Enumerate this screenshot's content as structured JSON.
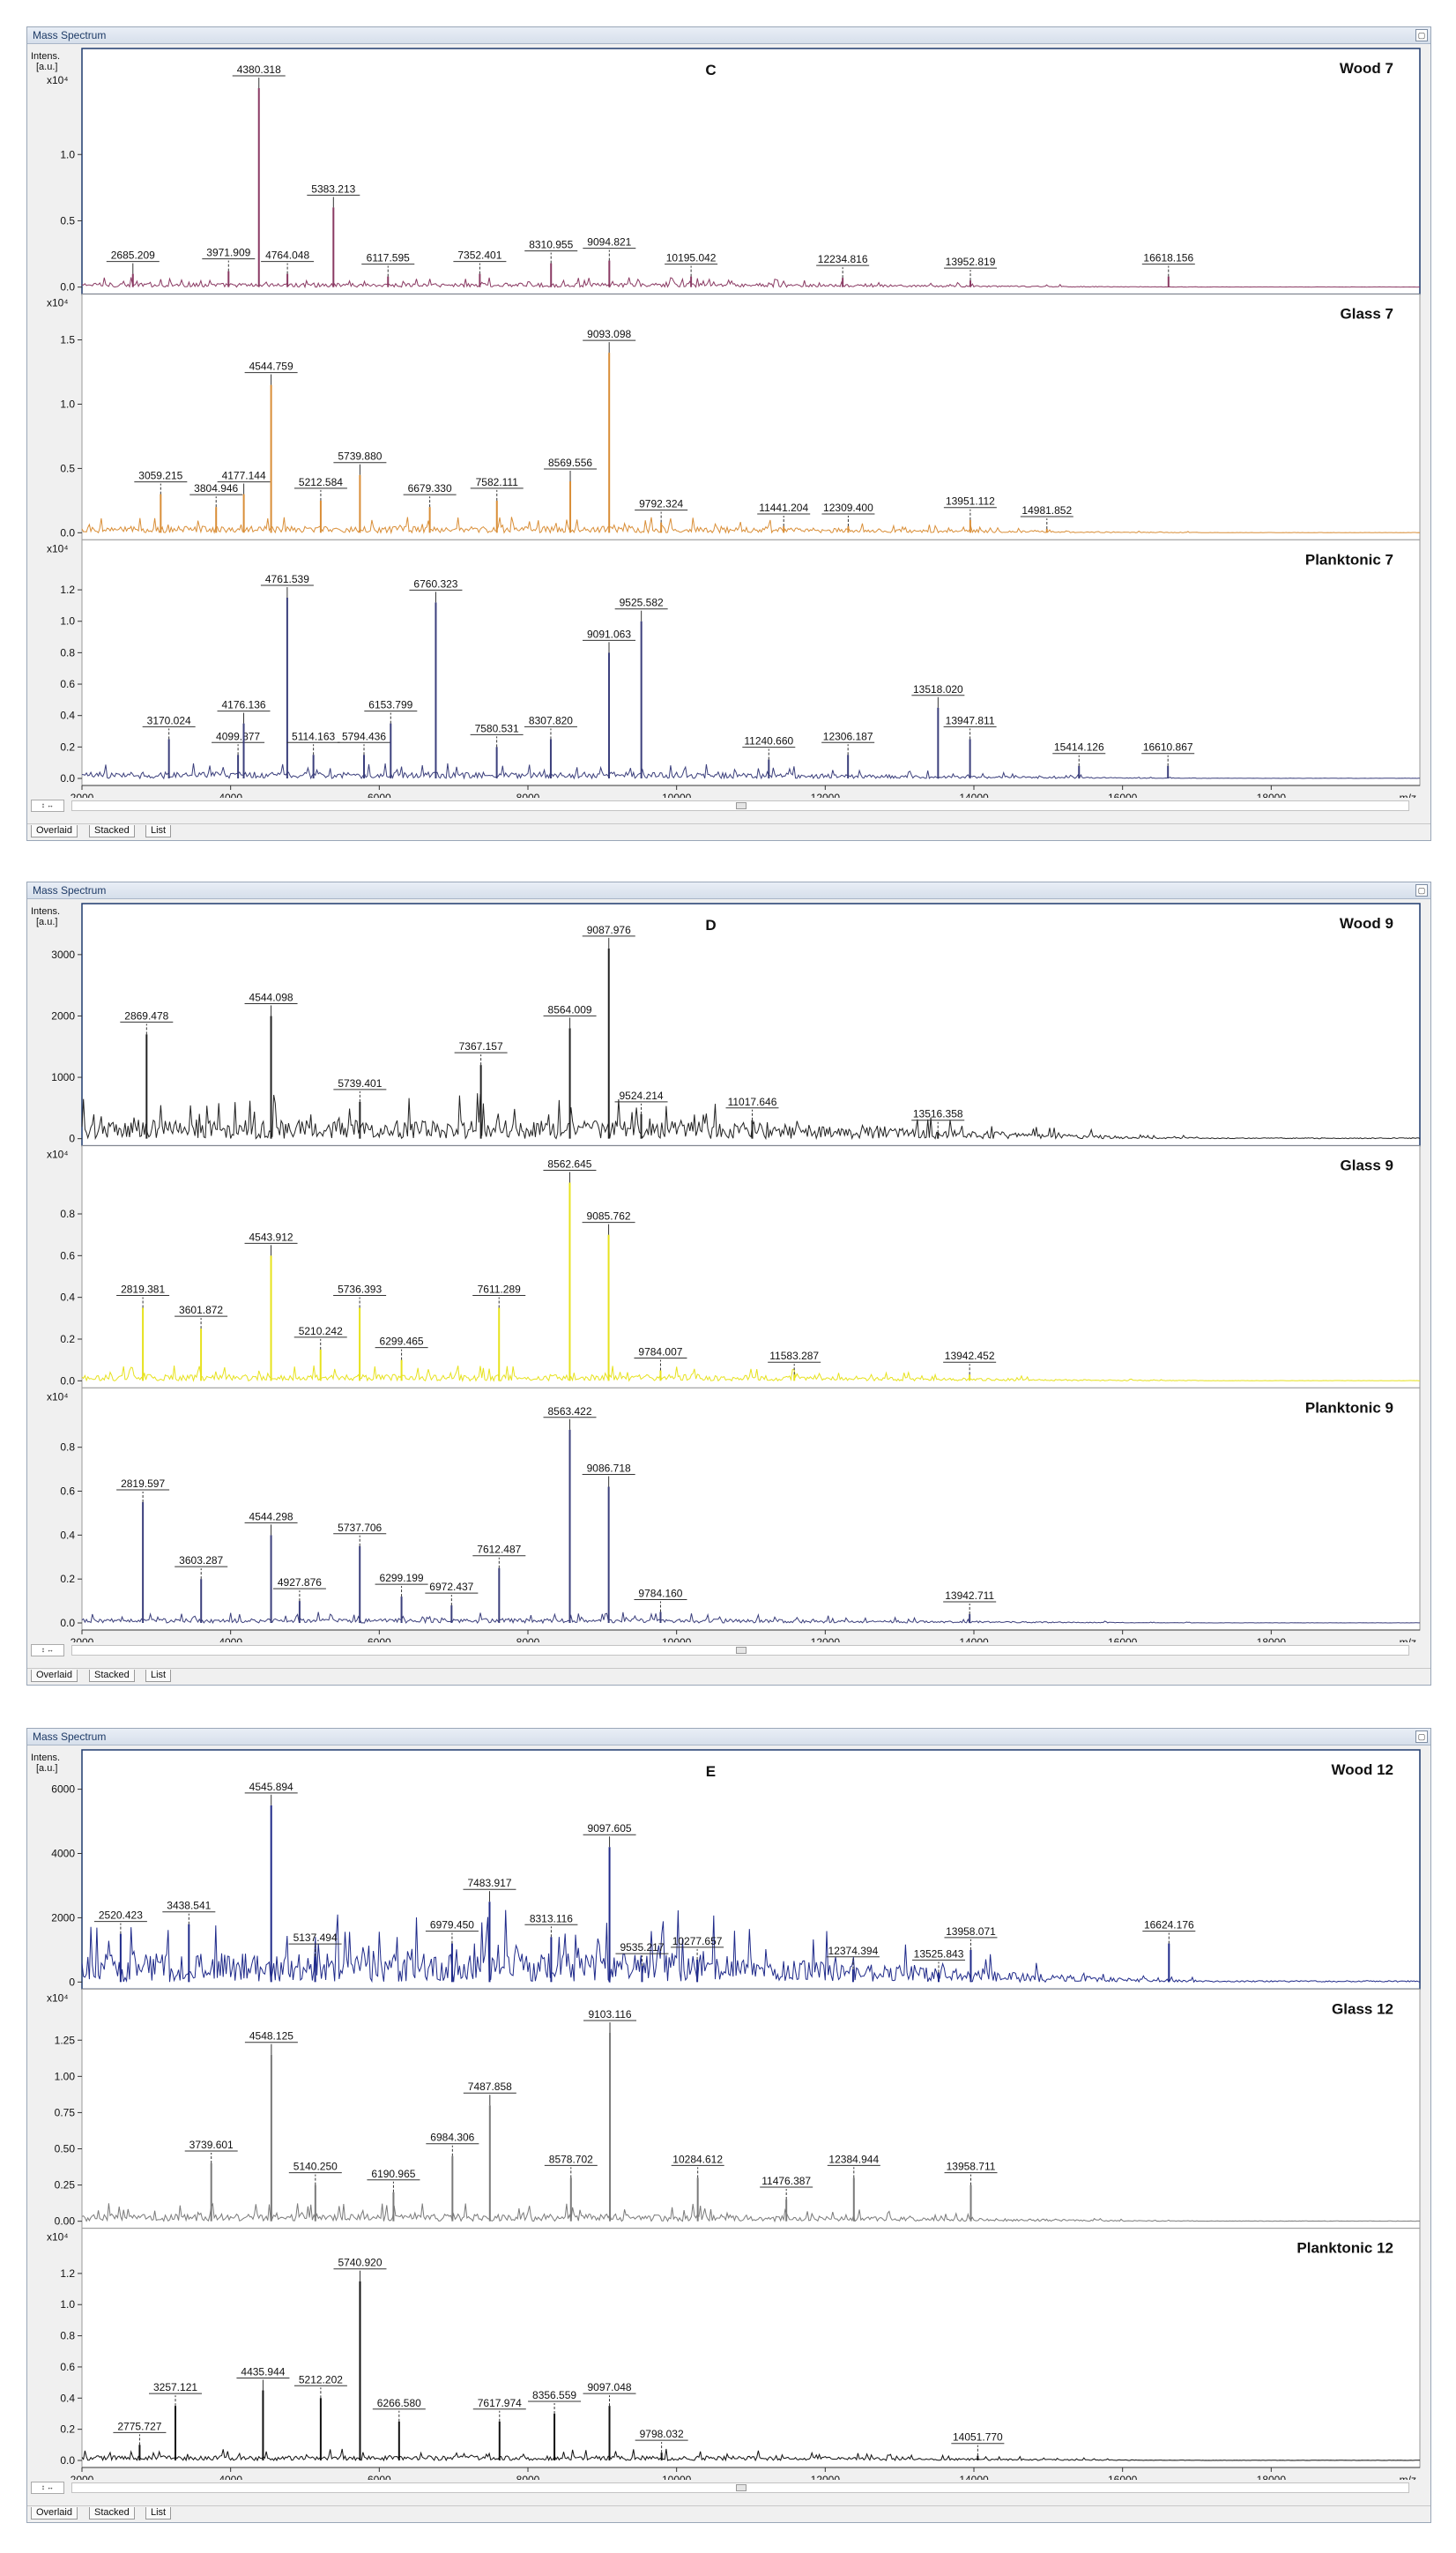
{
  "window_title": "Mass Spectrum",
  "intens_label": [
    "Intens.",
    "[a.u.]"
  ],
  "mz_label": "m/z",
  "tabs": [
    "Overlaid",
    "Stacked",
    "List"
  ],
  "spin_label": "↕ ↔",
  "chart_data": [
    {
      "type": "line",
      "figure_letter": "C",
      "x_ticks": [
        2000,
        4000,
        6000,
        8000,
        10000,
        12000,
        14000,
        16000,
        18000
      ],
      "xlim": [
        2000,
        20000
      ],
      "panels": [
        {
          "name": "Wood 7",
          "color": "#8a3a63",
          "multiplier": "x10⁴",
          "ylim": [
            0,
            1.6
          ],
          "yticks": [
            "0.0",
            "0.5",
            "1.0"
          ],
          "ytick_values": [
            0,
            0.5,
            1.0
          ],
          "noise": 0.03,
          "peaks": [
            [
              2685.209,
              0.1,
              true
            ],
            [
              3971.909,
              0.12,
              false
            ],
            [
              4380.318,
              1.5,
              true
            ],
            [
              4764.048,
              0.1,
              false
            ],
            [
              5383.213,
              0.6,
              true
            ],
            [
              6117.595,
              0.08,
              false
            ],
            [
              7352.401,
              0.1,
              false
            ],
            [
              8310.955,
              0.18,
              false
            ],
            [
              9094.821,
              0.2,
              false
            ],
            [
              10195.042,
              0.08,
              false
            ],
            [
              12234.816,
              0.07,
              false
            ],
            [
              13952.819,
              0.05,
              false
            ],
            [
              16618.156,
              0.08,
              false
            ]
          ]
        },
        {
          "name": "Glass 7",
          "color": "#d98e37",
          "multiplier": "x10⁴",
          "ylim": [
            0,
            1.65
          ],
          "yticks": [
            "0.0",
            "0.5",
            "1.0",
            "1.5"
          ],
          "ytick_values": [
            0,
            0.5,
            1.0,
            1.5
          ],
          "noise": 0.05,
          "peaks": [
            [
              3059.215,
              0.3,
              false
            ],
            [
              3804.946,
              0.2,
              false
            ],
            [
              4177.144,
              0.3,
              true
            ],
            [
              4544.759,
              1.15,
              true
            ],
            [
              5212.584,
              0.25,
              false
            ],
            [
              5739.88,
              0.45,
              true
            ],
            [
              6679.33,
              0.2,
              false
            ],
            [
              7582.111,
              0.25,
              false
            ],
            [
              8569.556,
              0.4,
              true
            ],
            [
              9093.098,
              1.4,
              true
            ],
            [
              9792.324,
              0.08,
              false
            ],
            [
              11441.204,
              0.05,
              false
            ],
            [
              12309.4,
              0.05,
              false
            ],
            [
              13951.112,
              0.1,
              false
            ],
            [
              14981.852,
              0.03,
              false
            ]
          ]
        },
        {
          "name": "Planktonic 7",
          "color": "#3b3f7c",
          "multiplier": "x10⁴",
          "ylim": [
            0,
            1.35
          ],
          "yticks": [
            "0.0",
            "0.2",
            "0.4",
            "0.6",
            "0.8",
            "1.0",
            "1.2"
          ],
          "ytick_values": [
            0,
            0.2,
            0.4,
            0.6,
            0.8,
            1.0,
            1.2
          ],
          "noise": 0.04,
          "peaks": [
            [
              3170.024,
              0.25,
              false
            ],
            [
              4099.877,
              0.15,
              false
            ],
            [
              4176.136,
              0.35,
              true
            ],
            [
              4761.539,
              1.15,
              true
            ],
            [
              5114.163,
              0.15,
              false
            ],
            [
              5794.436,
              0.15,
              false
            ],
            [
              6153.799,
              0.35,
              false
            ],
            [
              6760.323,
              1.12,
              true
            ],
            [
              7580.531,
              0.2,
              false
            ],
            [
              8307.82,
              0.25,
              false
            ],
            [
              9091.063,
              0.8,
              true
            ],
            [
              9525.582,
              1.0,
              true
            ],
            [
              11240.66,
              0.12,
              false
            ],
            [
              12306.187,
              0.15,
              false
            ],
            [
              13518.02,
              0.45,
              true
            ],
            [
              13947.811,
              0.25,
              false
            ],
            [
              15414.126,
              0.08,
              false
            ],
            [
              16610.867,
              0.08,
              false
            ]
          ]
        }
      ]
    },
    {
      "type": "line",
      "figure_letter": "D",
      "x_ticks": [
        2000,
        4000,
        6000,
        8000,
        10000,
        12000,
        14000,
        16000,
        18000
      ],
      "xlim": [
        2000,
        20000
      ],
      "panels": [
        {
          "name": "Wood 9",
          "color": "#222222",
          "multiplier": "",
          "ylim": [
            0,
            3400
          ],
          "yticks": [
            "0",
            "1000",
            "2000",
            "3000"
          ],
          "ytick_values": [
            0,
            1000,
            2000,
            3000
          ],
          "noise": 300,
          "peaks": [
            [
              2869.478,
              1700,
              false
            ],
            [
              4544.098,
              2000,
              true
            ],
            [
              5739.401,
              600,
              false
            ],
            [
              7367.157,
              1200,
              false
            ],
            [
              8564.009,
              1800,
              true
            ],
            [
              9087.976,
              3100,
              true
            ],
            [
              9524.214,
              400,
              false
            ],
            [
              11017.646,
              300,
              false
            ],
            [
              13516.358,
              100,
              false
            ]
          ]
        },
        {
          "name": "Glass 9",
          "color": "#e7e21d",
          "multiplier": "x10⁴",
          "ylim": [
            0,
            1.0
          ],
          "yticks": [
            "0.0",
            "0.2",
            "0.4",
            "0.6",
            "0.8"
          ],
          "ytick_values": [
            0,
            0.2,
            0.4,
            0.6,
            0.8
          ],
          "noise": 0.03,
          "peaks": [
            [
              2819.381,
              0.35,
              false
            ],
            [
              3601.872,
              0.25,
              false
            ],
            [
              4543.912,
              0.6,
              true
            ],
            [
              5210.242,
              0.15,
              false
            ],
            [
              5736.393,
              0.35,
              false
            ],
            [
              6299.465,
              0.1,
              false
            ],
            [
              7611.289,
              0.35,
              false
            ],
            [
              8562.645,
              0.95,
              true
            ],
            [
              9085.762,
              0.7,
              true
            ],
            [
              9784.007,
              0.05,
              false
            ],
            [
              11583.287,
              0.03,
              false
            ],
            [
              13942.452,
              0.03,
              false
            ]
          ]
        },
        {
          "name": "Planktonic 9",
          "color": "#3b3f7c",
          "multiplier": "x10⁴",
          "ylim": [
            0,
            0.95
          ],
          "yticks": [
            "0.0",
            "0.2",
            "0.4",
            "0.6",
            "0.8"
          ],
          "ytick_values": [
            0,
            0.2,
            0.4,
            0.6,
            0.8
          ],
          "noise": 0.02,
          "peaks": [
            [
              2819.597,
              0.55,
              false
            ],
            [
              3603.287,
              0.2,
              false
            ],
            [
              4544.298,
              0.4,
              true
            ],
            [
              4927.876,
              0.1,
              false
            ],
            [
              5737.706,
              0.35,
              false
            ],
            [
              6299.199,
              0.12,
              false
            ],
            [
              6972.437,
              0.08,
              false
            ],
            [
              7612.487,
              0.25,
              false
            ],
            [
              8563.422,
              0.88,
              true
            ],
            [
              9086.718,
              0.62,
              true
            ],
            [
              9784.16,
              0.05,
              false
            ],
            [
              13942.711,
              0.04,
              false
            ]
          ]
        }
      ]
    },
    {
      "type": "line",
      "figure_letter": "E",
      "x_ticks": [
        2000,
        4000,
        6000,
        8000,
        10000,
        12000,
        14000,
        16000,
        18000
      ],
      "xlim": [
        2000,
        20000
      ],
      "panels": [
        {
          "name": "Wood 12",
          "color": "#1f2a8a",
          "multiplier": "",
          "ylim": [
            0,
            6400
          ],
          "yticks": [
            "0",
            "2000",
            "4000",
            "6000"
          ],
          "ytick_values": [
            0,
            2000,
            4000,
            6000
          ],
          "noise": 900,
          "peaks": [
            [
              2520.423,
              1500,
              false
            ],
            [
              3438.541,
              1800,
              false
            ],
            [
              4545.894,
              5500,
              true
            ],
            [
              5137.494,
              800,
              false
            ],
            [
              6979.45,
              1200,
              false
            ],
            [
              7483.917,
              2500,
              true
            ],
            [
              8313.116,
              1400,
              false
            ],
            [
              9097.605,
              4200,
              true
            ],
            [
              9535.217,
              500,
              false
            ],
            [
              10277.657,
              700,
              false
            ],
            [
              12374.394,
              400,
              false
            ],
            [
              13525.843,
              300,
              false
            ],
            [
              13958.071,
              1000,
              false
            ],
            [
              16624.176,
              1200,
              false
            ]
          ]
        },
        {
          "name": "Glass 12",
          "color": "#7a7a7a",
          "multiplier": "x10⁴",
          "ylim": [
            0,
            1.42
          ],
          "yticks": [
            "0.00",
            "0.25",
            "0.50",
            "0.75",
            "1.00",
            "1.25"
          ],
          "ytick_values": [
            0,
            0.25,
            0.5,
            0.75,
            1.0,
            1.25
          ],
          "noise": 0.05,
          "peaks": [
            [
              3739.601,
              0.4,
              false
            ],
            [
              4548.125,
              1.15,
              true
            ],
            [
              5140.25,
              0.25,
              false
            ],
            [
              6190.965,
              0.2,
              false
            ],
            [
              6984.306,
              0.45,
              false
            ],
            [
              7487.858,
              0.8,
              true
            ],
            [
              8578.702,
              0.3,
              false
            ],
            [
              9103.116,
              1.3,
              true
            ],
            [
              10284.612,
              0.3,
              false
            ],
            [
              11476.387,
              0.15,
              false
            ],
            [
              12384.944,
              0.3,
              false
            ],
            [
              13958.711,
              0.25,
              false
            ]
          ]
        },
        {
          "name": "Planktonic 12",
          "color": "#111111",
          "multiplier": "x10⁴",
          "ylim": [
            0,
            1.32
          ],
          "yticks": [
            "0.0",
            "0.2",
            "0.4",
            "0.6",
            "0.8",
            "1.0",
            "1.2"
          ],
          "ytick_values": [
            0,
            0.2,
            0.4,
            0.6,
            0.8,
            1.0,
            1.2
          ],
          "noise": 0.03,
          "peaks": [
            [
              2775.727,
              0.1,
              false
            ],
            [
              3257.121,
              0.35,
              false
            ],
            [
              4435.944,
              0.45,
              true
            ],
            [
              5212.202,
              0.4,
              false
            ],
            [
              5740.92,
              1.15,
              true
            ],
            [
              6266.58,
              0.25,
              false
            ],
            [
              7617.974,
              0.25,
              false
            ],
            [
              8356.559,
              0.3,
              false
            ],
            [
              9097.048,
              0.35,
              false
            ],
            [
              9798.032,
              0.05,
              false
            ],
            [
              14051.77,
              0.03,
              false
            ]
          ]
        }
      ]
    }
  ]
}
